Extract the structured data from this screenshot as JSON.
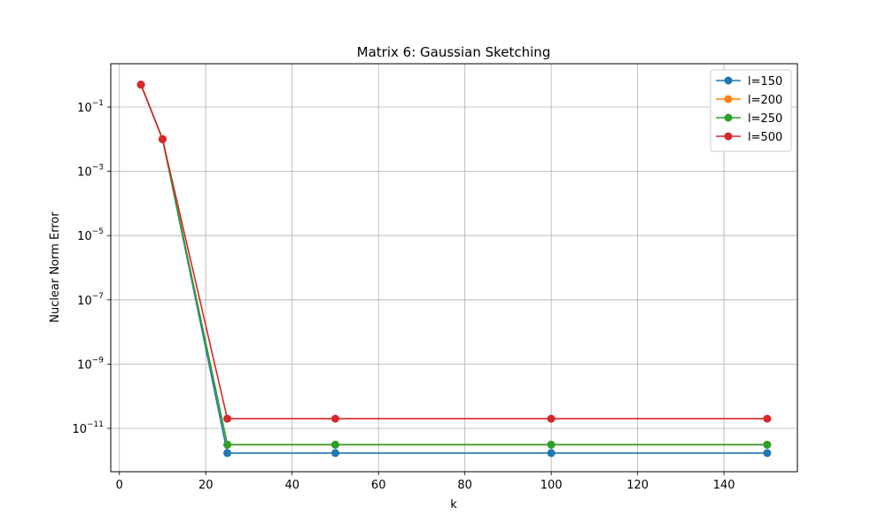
{
  "chart_data": {
    "type": "line",
    "title": "Matrix 6: Gaussian Sketching",
    "xlabel": "k",
    "ylabel": "Nuclear Norm Error",
    "x": [
      5,
      10,
      25,
      50,
      100,
      150
    ],
    "xlim": [
      -2,
      157
    ],
    "xticks": [
      0,
      20,
      40,
      60,
      80,
      100,
      120,
      140
    ],
    "ylim_exponents": [
      -12.35,
      0.35
    ],
    "yscale": "log",
    "yticks": [
      {
        "base": "10",
        "exp": "−1",
        "value": -1
      },
      {
        "base": "10",
        "exp": "−3",
        "value": -3
      },
      {
        "base": "10",
        "exp": "−5",
        "value": -5
      },
      {
        "base": "10",
        "exp": "−7",
        "value": -7
      },
      {
        "base": "10",
        "exp": "−9",
        "value": -9
      },
      {
        "base": "10",
        "exp": "−11",
        "value": -11
      }
    ],
    "grid": true,
    "legend_position": "top-right",
    "series": [
      {
        "name": "l=150",
        "color": "#1f77b4",
        "values": [
          0.5,
          0.01,
          1.7e-12,
          1.7e-12,
          1.7e-12,
          1.7e-12
        ]
      },
      {
        "name": "l=200",
        "color": "#ff7f0e",
        "values": [
          0.5,
          0.01,
          3.1e-12,
          3.1e-12,
          3.1e-12,
          3.1e-12
        ]
      },
      {
        "name": "l=250",
        "color": "#2ca02c",
        "values": [
          0.5,
          0.01,
          3.1e-12,
          3.1e-12,
          3.1e-12,
          3.1e-12
        ]
      },
      {
        "name": "l=500",
        "color": "#d62728",
        "values": [
          0.5,
          0.01,
          2e-11,
          2e-11,
          2e-11,
          2e-11
        ]
      }
    ]
  }
}
